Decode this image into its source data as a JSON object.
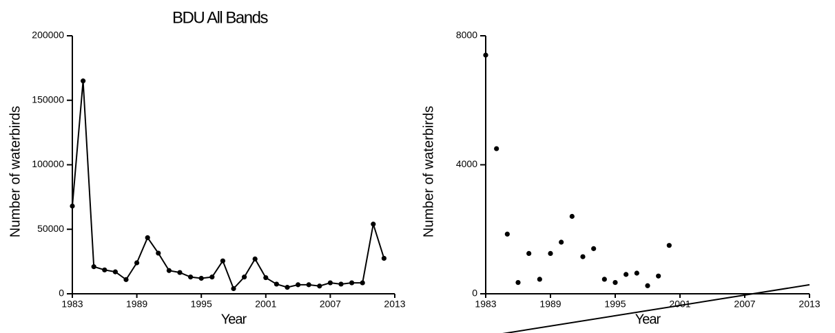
{
  "chart_data": [
    {
      "type": "line",
      "title": "BDU All Bands",
      "xlabel": "Year",
      "ylabel": "Number of waterbirds",
      "color": "#000000",
      "x": [
        1983,
        1984,
        1985,
        1986,
        1987,
        1988,
        1989,
        1990,
        1991,
        1992,
        1993,
        1994,
        1995,
        1996,
        1997,
        1998,
        1999,
        2000,
        2001,
        2002,
        2003,
        2004,
        2005,
        2006,
        2007,
        2008,
        2009,
        2010,
        2011,
        2012
      ],
      "values": [
        68000,
        165000,
        21000,
        18500,
        17000,
        11000,
        24000,
        43500,
        31500,
        18000,
        16500,
        13000,
        12000,
        13000,
        25500,
        4000,
        13000,
        27000,
        12500,
        7500,
        5000,
        7000,
        7000,
        6000,
        8500,
        7500,
        8500,
        8500,
        54000,
        27500
      ],
      "xlim": [
        1983,
        2013
      ],
      "xticks": [
        1983,
        1989,
        1995,
        2001,
        2007,
        2013
      ],
      "ylim": [
        0,
        200000
      ],
      "yticks": [
        0,
        50000,
        100000,
        150000,
        200000
      ]
    },
    {
      "type": "scatter",
      "xlabel": "Year",
      "ylabel": "Number of waterbirds",
      "color": "#000000",
      "x": [
        1983,
        1984,
        1985,
        1986,
        1987,
        1988,
        1989,
        1990,
        1991,
        1992,
        1993,
        1994,
        1995,
        1996,
        1997,
        1998,
        1999,
        2000
      ],
      "values": [
        7400,
        4500,
        1850,
        350,
        1250,
        450,
        1250,
        1600,
        2400,
        1150,
        1400,
        450,
        350,
        600,
        640,
        250,
        550,
        1500
      ],
      "trend": {
        "x": [
          1983,
          2013
        ],
        "values": [
          -1320,
          280
        ]
      },
      "xlim": [
        1983,
        2013
      ],
      "xticks": [
        1983,
        1989,
        1995,
        2001,
        2007,
        2013
      ],
      "ylim": [
        0,
        8000
      ],
      "yticks": [
        0,
        4000,
        8000
      ]
    }
  ]
}
